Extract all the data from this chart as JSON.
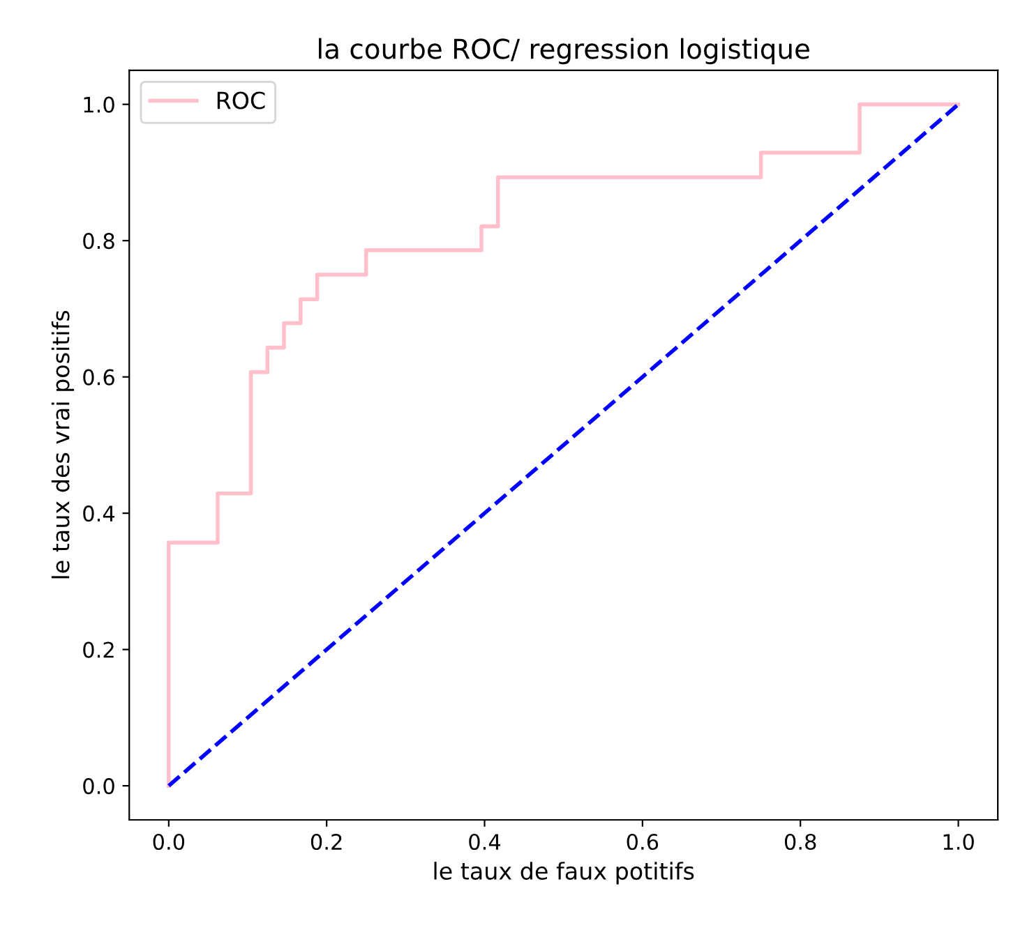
{
  "chart_data": {
    "type": "line",
    "title": "la courbe ROC/ regression logistique",
    "xlabel": "le taux de faux potitifs",
    "ylabel": "le taux des vrai positifs",
    "series": [
      {
        "name": "ROC",
        "type": "step",
        "color": "#ffc0cb",
        "x": [
          0,
          0,
          0.062,
          0.104,
          0.125,
          0.146,
          0.167,
          0.188,
          0.25,
          0.396,
          0.417,
          0.75,
          0.875,
          1.0
        ],
        "values": [
          0,
          0.357,
          0.429,
          0.607,
          0.643,
          0.679,
          0.714,
          0.75,
          0.786,
          0.821,
          0.893,
          0.929,
          1.0,
          1.0
        ]
      },
      {
        "color": "#0000ff",
        "line_style": "dashed",
        "x": [
          0,
          1
        ],
        "values": [
          0,
          1
        ]
      }
    ],
    "xlim": [
      -0.05,
      1.05
    ],
    "ylim": [
      -0.05,
      1.05
    ],
    "xticks": [
      {
        "value": 0,
        "label": "0.0"
      },
      {
        "value": 0.2,
        "label": "0.2"
      },
      {
        "value": 0.4,
        "label": "0.4"
      },
      {
        "value": 0.6,
        "label": "0.6"
      },
      {
        "value": 0.8,
        "label": "0.8"
      },
      {
        "value": 1,
        "label": "1.0"
      }
    ],
    "yticks": [
      {
        "value": 0,
        "label": "0.0"
      },
      {
        "value": 0.2,
        "label": "0.2"
      },
      {
        "value": 0.4,
        "label": "0.4"
      },
      {
        "value": 0.6,
        "label": "0.6"
      },
      {
        "value": 0.8,
        "label": "0.8"
      },
      {
        "value": 1,
        "label": "1.0"
      }
    ],
    "grid": false,
    "legend": "top left"
  }
}
